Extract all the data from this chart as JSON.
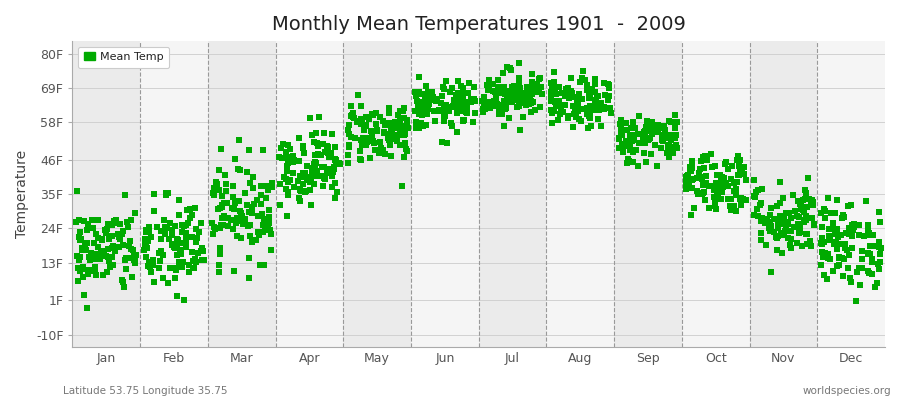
{
  "title": "Monthly Mean Temperatures 1901  -  2009",
  "ylabel": "Temperature",
  "yticks": [
    -10,
    1,
    13,
    24,
    35,
    46,
    58,
    69,
    80
  ],
  "ytick_labels": [
    "-10F",
    "1F",
    "13F",
    "24F",
    "35F",
    "46F",
    "58F",
    "69F",
    "80F"
  ],
  "ylim": [
    -14,
    84
  ],
  "months": [
    "Jan",
    "Feb",
    "Mar",
    "Apr",
    "May",
    "Jun",
    "Jul",
    "Aug",
    "Sep",
    "Oct",
    "Nov",
    "Dec"
  ],
  "dot_color": "#00aa00",
  "dot_size": 18,
  "bg_color": "#ffffff",
  "band_color_odd": "#ebebeb",
  "band_color_even": "#f5f5f5",
  "legend_label": "Mean Temp",
  "bottom_left": "Latitude 53.75 Longitude 35.75",
  "bottom_right": "worldspecies.org",
  "monthly_means_F": [
    17,
    18,
    30,
    44,
    55,
    63,
    67,
    64,
    53,
    39,
    27,
    19
  ],
  "monthly_stds_F": [
    7,
    8,
    8,
    6,
    5,
    4,
    4,
    4,
    4,
    5,
    6,
    7
  ],
  "n_years": 109
}
